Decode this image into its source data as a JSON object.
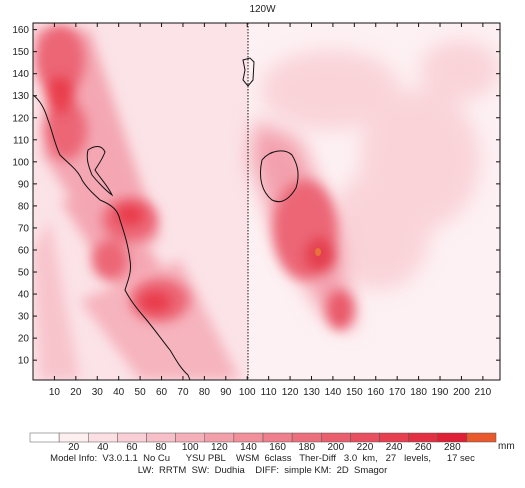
{
  "map": {
    "top_label": "120W",
    "x_ticks": [
      "10",
      "20",
      "30",
      "40",
      "50",
      "60",
      "70",
      "80",
      "90",
      "100",
      "110",
      "120",
      "130",
      "140",
      "150",
      "160",
      "170",
      "180",
      "190",
      "200",
      "210"
    ],
    "y_ticks": [
      "10",
      "20",
      "30",
      "40",
      "50",
      "60",
      "70",
      "80",
      "90",
      "100",
      "110",
      "120",
      "130",
      "140",
      "150",
      "160"
    ],
    "x_range": [
      0,
      218
    ],
    "y_range": [
      1,
      163
    ],
    "field_color_high": "#e8333f",
    "field_color_low": "#fde9ec",
    "coastline_color": "#111111"
  },
  "colorbar": {
    "labels": [
      "20",
      "40",
      "60",
      "80",
      "100",
      "120",
      "140",
      "160",
      "180",
      "200",
      "220",
      "240",
      "260",
      "280"
    ],
    "unit": "mm",
    "colors": [
      "#ffffff",
      "#fdeef0",
      "#fbdfe3",
      "#f9cfd5",
      "#f7bfc8",
      "#f5afb9",
      "#f39faa",
      "#f18f9b",
      "#ef7f8c",
      "#ec6f7d",
      "#ea5f6e",
      "#e84f5f",
      "#e63f50",
      "#e22f42",
      "#de1f35",
      "#e85a2c"
    ]
  },
  "model_info": {
    "line1": "Model Info:  V3.0.1.1  No Cu      YSU PBL    WSM  6class   Ther-Diff   3.0  km,   27   levels,      17 sec",
    "line2": "LW:  RRTM  SW:  Dudhia    DIFF:  simple KM:  2D  Smagor"
  }
}
